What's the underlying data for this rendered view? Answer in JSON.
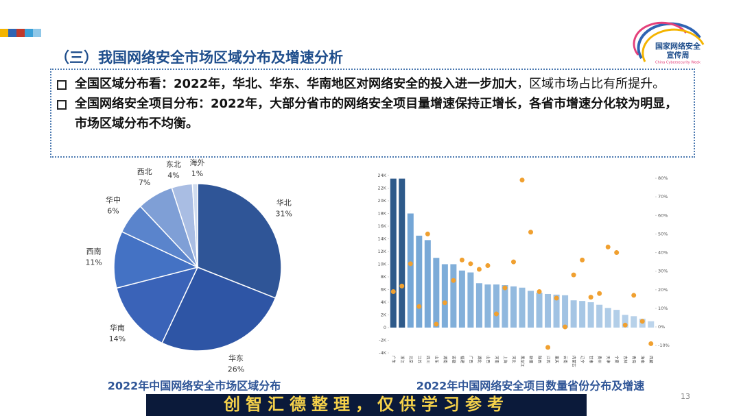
{
  "header": {
    "title": "（三）我国网络安全市场区域分布及增速分析",
    "logo": "国家网络安全",
    "logo_line2": "宣传周",
    "logo_sub": "China Cybersecurity Week"
  },
  "bullets": [
    {
      "bold": "全国区域分布看：2022年，华北、华东、华南地区对网络安全的投入进一步加大",
      "text": "，区域市场占比有所提升。"
    },
    {
      "bold": "全国网络安全项目分布：2022年，大部分省市的网络安全项目量增速保持正增长，各省市增速分化较为明显，市场区域分布不均衡。"
    }
  ],
  "chart_data": [
    {
      "type": "pie",
      "title": "2022年中国网络安全市场区域分布",
      "categories": [
        "华北",
        "华东",
        "华南",
        "西南",
        "华中",
        "西北",
        "东北",
        "海外"
      ],
      "values": [
        31,
        26,
        14,
        11,
        6,
        7,
        4,
        1
      ],
      "value_labels": [
        "31%",
        "26%",
        "14%",
        "11%",
        "6%",
        "7%",
        "4%",
        "1%"
      ],
      "colors": [
        "#2f5597",
        "#2e55a5",
        "#3a63b8",
        "#4472c4",
        "#5a84cc",
        "#7f9fd6",
        "#a9bde3",
        "#d0dcef"
      ]
    },
    {
      "type": "bar",
      "title": "2022年中国网络安全项目数量省份分布及增速",
      "categories": [
        "广东",
        "浙江",
        "北京",
        "江苏",
        "四川",
        "山东",
        "湖南",
        "安徽",
        "福建",
        "广西",
        "湖北",
        "山西",
        "河南",
        "上海",
        "河北",
        "黑龙江",
        "新疆",
        "陕西",
        "江西",
        "重庆",
        "云南",
        "内蒙古",
        "辽宁",
        "甘肃",
        "贵州",
        "天津",
        "宁夏",
        "吉林",
        "青海",
        "海南",
        "西藏"
      ],
      "series": [
        {
          "name": "项目数量",
          "color": "#6fa3d4",
          "values": [
            23500,
            23500,
            18000,
            14500,
            13800,
            11000,
            10000,
            10000,
            9000,
            8700,
            7000,
            6800,
            6800,
            6700,
            6500,
            6300,
            5800,
            5500,
            5300,
            5200,
            5100,
            4300,
            4200,
            4000,
            3600,
            3100,
            2800,
            2000,
            1800,
            1400,
            1000
          ]
        },
        {
          "name": "增速",
          "color": "#f0a030",
          "axis": "y2",
          "values": [
            19,
            22,
            34,
            11,
            50,
            1.5,
            13,
            25,
            36,
            34,
            31,
            33,
            7,
            21,
            35,
            79,
            51,
            19,
            -11,
            15.5,
            0,
            28,
            36,
            16,
            18,
            43,
            40,
            1,
            17,
            3,
            -9
          ]
        }
      ],
      "ylim": [
        -4000,
        24000
      ],
      "yticks": [
        {
          "value": -4000,
          "label": "-4K"
        },
        {
          "value": -2000,
          "label": "-2K"
        },
        0,
        {
          "value": 2000,
          "label": "2K"
        },
        {
          "value": 4000,
          "label": "4K"
        },
        {
          "value": 6000,
          "label": "6K"
        },
        {
          "value": 8000,
          "label": "8K"
        },
        {
          "value": 10000,
          "label": "10K"
        },
        {
          "value": 12000,
          "label": "12K"
        },
        {
          "value": 14000,
          "label": "14K"
        },
        {
          "value": 16000,
          "label": "16K"
        },
        {
          "value": 18000,
          "label": "18K"
        },
        {
          "value": 20000,
          "label": "20K"
        },
        {
          "value": 22000,
          "label": "22K"
        },
        {
          "value": 24000,
          "label": "24K"
        }
      ],
      "y2lim": [
        -14,
        81.5
      ],
      "y2ticks": [
        {
          "value": -10,
          "label": "-10%"
        },
        {
          "value": 0,
          "label": "0%"
        },
        {
          "value": 10,
          "label": "10%"
        },
        {
          "value": 20,
          "label": "20%"
        },
        {
          "value": 30,
          "label": "30%"
        },
        {
          "value": 40,
          "label": "40%"
        },
        {
          "value": 50,
          "label": "50%"
        },
        {
          "value": 60,
          "label": "60%"
        },
        {
          "value": 70,
          "label": "70%"
        },
        {
          "value": 80,
          "label": "80%"
        }
      ],
      "grid": false
    }
  ],
  "page_number": "13",
  "watermark": "创智汇德整理，仅供学习参考"
}
